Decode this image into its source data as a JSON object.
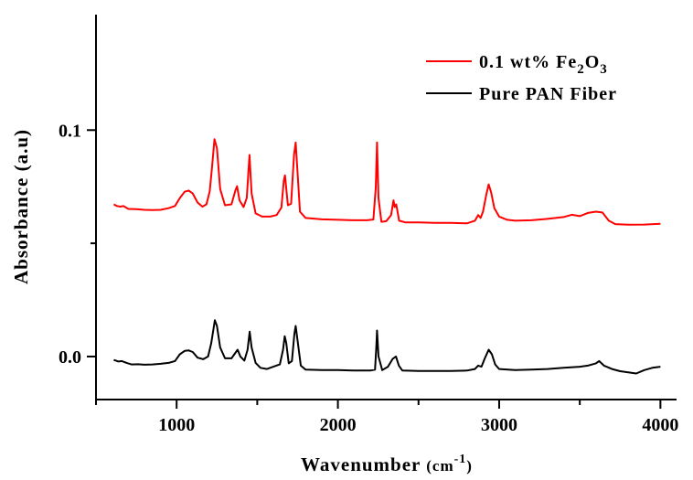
{
  "chart_data": {
    "type": "line",
    "title": "",
    "xlabel": {
      "main": "Wavenumber ",
      "unit_open": "(cm",
      "sup": "-1",
      "unit_close": ")"
    },
    "ylabel": "Absorbance (a.u)",
    "xlim": [
      500,
      4100
    ],
    "ylim": [
      -0.019,
      0.151
    ],
    "x_ticks": [
      1000,
      2000,
      3000,
      4000
    ],
    "x_tick_labels": [
      "1000",
      "2000",
      "3000",
      "4000"
    ],
    "y_ticks": [
      0.0,
      0.1
    ],
    "y_tick_labels": [
      "0.0",
      "0.1"
    ],
    "grid": false,
    "legend_position": "top-right",
    "legend": [
      {
        "label_main": "0.1 wt% Fe",
        "sub1": "2",
        "mid": "O",
        "sub2": "3",
        "color": "#ff0000"
      },
      {
        "label_main": "Pure PAN Fiber",
        "color": "#000000"
      }
    ],
    "series": [
      {
        "name": "0.1 wt% Fe2O3",
        "color": "#ff0000",
        "points": [
          [
            610,
            0.0672
          ],
          [
            630,
            0.0665
          ],
          [
            650,
            0.0662
          ],
          [
            670,
            0.0665
          ],
          [
            700,
            0.0652
          ],
          [
            750,
            0.0651
          ],
          [
            800,
            0.0648
          ],
          [
            850,
            0.0647
          ],
          [
            900,
            0.0648
          ],
          [
            950,
            0.0655
          ],
          [
            990,
            0.0665
          ],
          [
            1020,
            0.07
          ],
          [
            1050,
            0.0728
          ],
          [
            1075,
            0.0733
          ],
          [
            1100,
            0.072
          ],
          [
            1130,
            0.068
          ],
          [
            1160,
            0.0662
          ],
          [
            1185,
            0.0672
          ],
          [
            1205,
            0.073
          ],
          [
            1220,
            0.084
          ],
          [
            1235,
            0.096
          ],
          [
            1250,
            0.092
          ],
          [
            1270,
            0.074
          ],
          [
            1300,
            0.0668
          ],
          [
            1340,
            0.0672
          ],
          [
            1365,
            0.0735
          ],
          [
            1375,
            0.0752
          ],
          [
            1390,
            0.069
          ],
          [
            1415,
            0.066
          ],
          [
            1435,
            0.07
          ],
          [
            1452,
            0.089
          ],
          [
            1465,
            0.072
          ],
          [
            1490,
            0.0632
          ],
          [
            1530,
            0.0618
          ],
          [
            1580,
            0.0618
          ],
          [
            1620,
            0.0625
          ],
          [
            1650,
            0.0658
          ],
          [
            1665,
            0.078
          ],
          [
            1672,
            0.08
          ],
          [
            1690,
            0.0668
          ],
          [
            1710,
            0.0675
          ],
          [
            1728,
            0.089
          ],
          [
            1738,
            0.0945
          ],
          [
            1750,
            0.081
          ],
          [
            1765,
            0.064
          ],
          [
            1800,
            0.0612
          ],
          [
            1900,
            0.0606
          ],
          [
            2000,
            0.0604
          ],
          [
            2100,
            0.0602
          ],
          [
            2180,
            0.0602
          ],
          [
            2220,
            0.0605
          ],
          [
            2235,
            0.0745
          ],
          [
            2243,
            0.0945
          ],
          [
            2252,
            0.07
          ],
          [
            2270,
            0.0595
          ],
          [
            2300,
            0.0598
          ],
          [
            2330,
            0.0625
          ],
          [
            2345,
            0.069
          ],
          [
            2352,
            0.066
          ],
          [
            2362,
            0.0672
          ],
          [
            2380,
            0.06
          ],
          [
            2420,
            0.0592
          ],
          [
            2500,
            0.0592
          ],
          [
            2600,
            0.059
          ],
          [
            2700,
            0.059
          ],
          [
            2800,
            0.0588
          ],
          [
            2850,
            0.06
          ],
          [
            2870,
            0.0625
          ],
          [
            2885,
            0.0612
          ],
          [
            2900,
            0.064
          ],
          [
            2920,
            0.0715
          ],
          [
            2935,
            0.076
          ],
          [
            2950,
            0.0725
          ],
          [
            2970,
            0.0655
          ],
          [
            3000,
            0.0618
          ],
          [
            3050,
            0.0604
          ],
          [
            3100,
            0.06
          ],
          [
            3200,
            0.0602
          ],
          [
            3300,
            0.0608
          ],
          [
            3400,
            0.0616
          ],
          [
            3450,
            0.0626
          ],
          [
            3500,
            0.062
          ],
          [
            3550,
            0.0634
          ],
          [
            3600,
            0.064
          ],
          [
            3640,
            0.0636
          ],
          [
            3680,
            0.06
          ],
          [
            3720,
            0.0585
          ],
          [
            3800,
            0.0582
          ],
          [
            3900,
            0.0583
          ],
          [
            4000,
            0.0586
          ]
        ]
      },
      {
        "name": "Pure PAN Fiber",
        "color": "#000000",
        "points": [
          [
            610,
            -0.0015
          ],
          [
            640,
            -0.0022
          ],
          [
            660,
            -0.002
          ],
          [
            690,
            -0.0028
          ],
          [
            720,
            -0.0035
          ],
          [
            760,
            -0.0034
          ],
          [
            800,
            -0.0036
          ],
          [
            850,
            -0.0035
          ],
          [
            900,
            -0.0032
          ],
          [
            950,
            -0.0028
          ],
          [
            990,
            -0.002
          ],
          [
            1020,
            0.001
          ],
          [
            1050,
            0.0025
          ],
          [
            1075,
            0.0027
          ],
          [
            1100,
            0.002
          ],
          [
            1130,
            -0.0005
          ],
          [
            1165,
            -0.0012
          ],
          [
            1195,
            0.0
          ],
          [
            1215,
            0.006
          ],
          [
            1237,
            0.016
          ],
          [
            1250,
            0.0135
          ],
          [
            1270,
            0.004
          ],
          [
            1300,
            -0.0008
          ],
          [
            1340,
            -0.0008
          ],
          [
            1368,
            0.002
          ],
          [
            1378,
            0.003
          ],
          [
            1395,
            0.0
          ],
          [
            1420,
            -0.0018
          ],
          [
            1440,
            0.003
          ],
          [
            1453,
            0.011
          ],
          [
            1465,
            0.004
          ],
          [
            1490,
            -0.0028
          ],
          [
            1520,
            -0.005
          ],
          [
            1560,
            -0.0055
          ],
          [
            1600,
            -0.0045
          ],
          [
            1640,
            -0.0035
          ],
          [
            1660,
            0.003
          ],
          [
            1670,
            0.009
          ],
          [
            1680,
            0.006
          ],
          [
            1695,
            -0.003
          ],
          [
            1715,
            -0.002
          ],
          [
            1730,
            0.01
          ],
          [
            1738,
            0.0135
          ],
          [
            1750,
            0.007
          ],
          [
            1770,
            -0.004
          ],
          [
            1800,
            -0.0058
          ],
          [
            1900,
            -0.006
          ],
          [
            2000,
            -0.006
          ],
          [
            2100,
            -0.0062
          ],
          [
            2200,
            -0.0062
          ],
          [
            2230,
            -0.0058
          ],
          [
            2238,
            0.004
          ],
          [
            2243,
            0.0115
          ],
          [
            2252,
            0.0
          ],
          [
            2275,
            -0.006
          ],
          [
            2310,
            -0.0045
          ],
          [
            2340,
            -0.001
          ],
          [
            2360,
            0.0
          ],
          [
            2378,
            -0.004
          ],
          [
            2400,
            -0.0062
          ],
          [
            2500,
            -0.0064
          ],
          [
            2600,
            -0.0064
          ],
          [
            2700,
            -0.0064
          ],
          [
            2800,
            -0.0062
          ],
          [
            2850,
            -0.0055
          ],
          [
            2870,
            -0.004
          ],
          [
            2890,
            -0.0045
          ],
          [
            2910,
            -0.001
          ],
          [
            2935,
            0.003
          ],
          [
            2955,
            0.001
          ],
          [
            2975,
            -0.0035
          ],
          [
            3000,
            -0.0055
          ],
          [
            3100,
            -0.006
          ],
          [
            3200,
            -0.0058
          ],
          [
            3300,
            -0.0055
          ],
          [
            3400,
            -0.005
          ],
          [
            3500,
            -0.0045
          ],
          [
            3550,
            -0.004
          ],
          [
            3600,
            -0.003
          ],
          [
            3620,
            -0.002
          ],
          [
            3650,
            -0.004
          ],
          [
            3700,
            -0.0055
          ],
          [
            3750,
            -0.0065
          ],
          [
            3800,
            -0.007
          ],
          [
            3850,
            -0.0075
          ],
          [
            3900,
            -0.006
          ],
          [
            3950,
            -0.005
          ],
          [
            4000,
            -0.0045
          ]
        ]
      }
    ]
  }
}
